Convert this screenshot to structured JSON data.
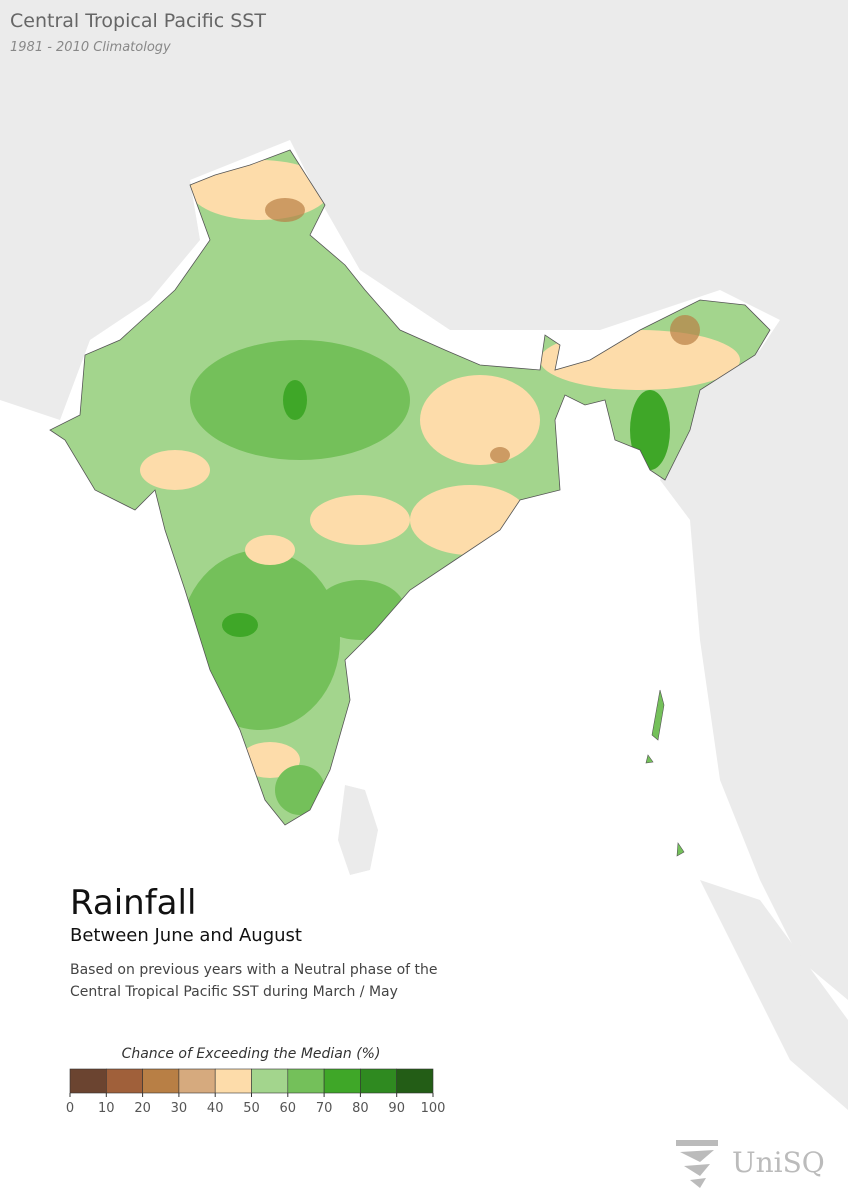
{
  "header": {
    "title": "Central Tropical Pacific SST",
    "subtitle": "1981 - 2010 Climatology"
  },
  "panel": {
    "heading": "Rainfall",
    "subheading": "Between June and August",
    "description": [
      "Based on previous years with a Neutral phase of the",
      "Central Tropical Pacific SST during March / May"
    ]
  },
  "legend": {
    "title": "Chance of Exceeding the Median (%)",
    "bins": [
      0,
      10,
      20,
      30,
      40,
      50,
      60,
      70,
      80,
      90,
      100
    ],
    "colors": [
      "#6b4430",
      "#a0603a",
      "#b87f45",
      "#d6aa7e",
      "#fddcaa",
      "#a3d58d",
      "#74c05a",
      "#3fa728",
      "#2f8a20",
      "#235d16"
    ]
  },
  "logo": {
    "text": "UniSQ"
  }
}
